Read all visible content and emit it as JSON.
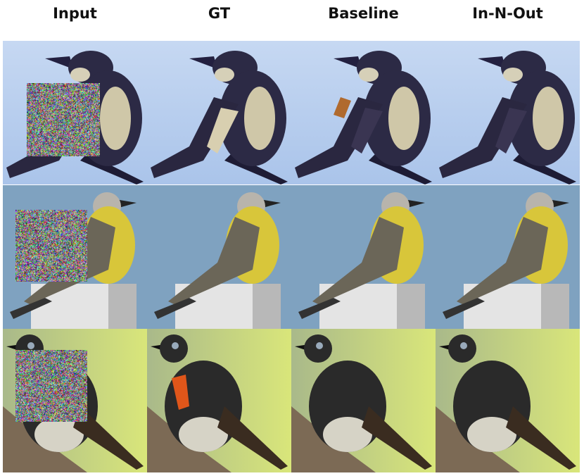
{
  "columns": [
    "Input",
    "GT",
    "Baseline",
    "In-N-Out"
  ],
  "rows": [
    {
      "subject": "bird-1",
      "bg": [
        "#aac4ea",
        "#c6d8f2"
      ],
      "body": "#2c2a45",
      "belly": "#cfc7a8",
      "has_orange": false
    },
    {
      "subject": "bird-2",
      "bg": [
        "#7fa2c0",
        "#9db8cf"
      ],
      "body": "#6b6658",
      "belly": "#d8c63a",
      "has_orange": false
    },
    {
      "subject": "bird-3",
      "bg": [
        "#a9b98a",
        "#d9e67a"
      ],
      "body": "#2a2a2a",
      "belly": "#d6d3c6",
      "has_orange": true
    }
  ],
  "colors": {
    "noise_patch": "random-rgb"
  }
}
